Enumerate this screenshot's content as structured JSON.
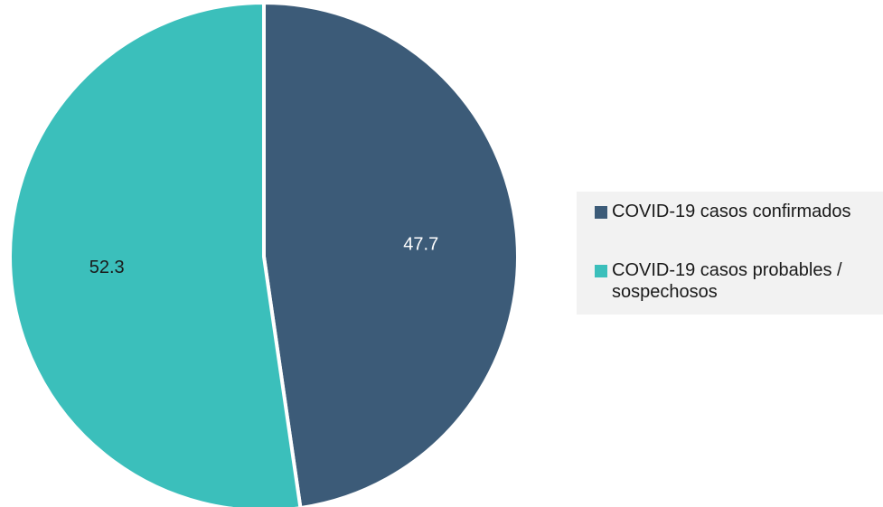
{
  "chart_data": {
    "type": "pie",
    "title": "",
    "slices": [
      {
        "name": "COVID-19 casos confirmados",
        "value": 47.7,
        "label": "47.7",
        "color": "#3c5b78",
        "label_color": "#ffffff"
      },
      {
        "name": "COVID-19 casos probables / sospechosos",
        "value": 52.3,
        "label": "52.3",
        "color": "#3bbfbb",
        "label_color": "#1a1a1a"
      }
    ],
    "start_angle_deg": 0,
    "direction": "clockwise",
    "legend_position": "right",
    "legend_background": "#f2f2f2"
  },
  "legend": {
    "items": [
      {
        "label": "COVID-19 casos confirmados",
        "color": "#3c5b78"
      },
      {
        "label": "COVID-19 casos probables / sospechosos",
        "color": "#3bbfbb"
      }
    ]
  }
}
